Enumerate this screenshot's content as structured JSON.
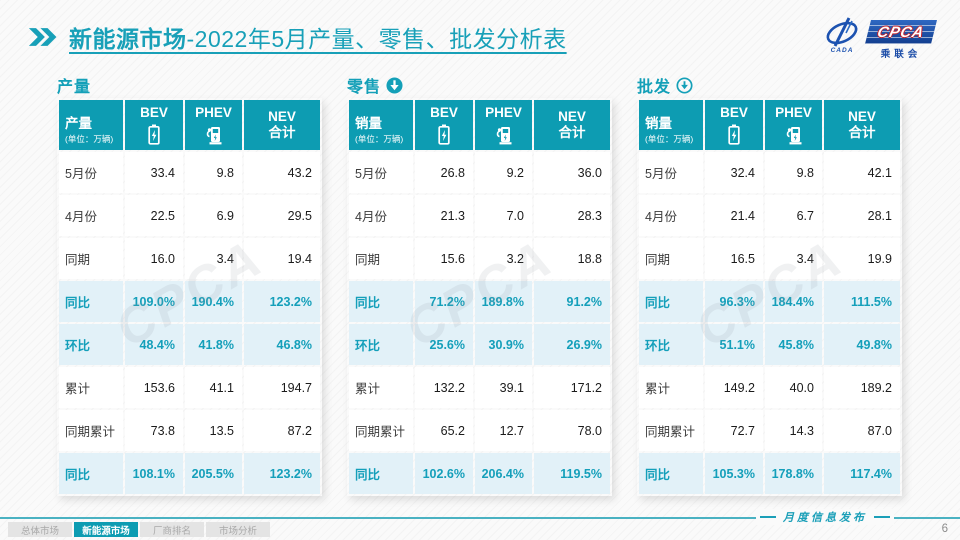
{
  "slide": {
    "title_bold": "新能源市场",
    "title_rest": "-2022年5月产量、零售、批发分析表",
    "footer_note": "月度信息发布",
    "page_number": "6",
    "nav_tabs": [
      "总体市场",
      "新能源市场",
      "厂商排名",
      "市场分析"
    ],
    "active_tab_index": 1
  },
  "logo": {
    "cpca": "CPCA",
    "cn": "乘联会",
    "emblem": "CADA"
  },
  "watermark": "CPCA",
  "colors": {
    "accent": "#0d9cb2",
    "title": "#18a0b8",
    "ratio_row_bg": "#e2f1f8",
    "ratio_text": "#149fba"
  },
  "tables": [
    {
      "section": "产量",
      "arrow": "none",
      "header": {
        "label": "产量",
        "unit": "(单位：万辆)",
        "col_bev": "BEV",
        "col_phev": "PHEV",
        "col_nev_line1": "NEV",
        "col_nev_line2": "合计"
      },
      "rows": [
        {
          "label": "5月份",
          "type": "normal",
          "values": [
            "33.4",
            "9.8",
            "43.2"
          ]
        },
        {
          "label": "4月份",
          "type": "normal",
          "values": [
            "22.5",
            "6.9",
            "29.5"
          ]
        },
        {
          "label": "同期",
          "type": "normal",
          "values": [
            "16.0",
            "3.4",
            "19.4"
          ]
        },
        {
          "label": "同比",
          "type": "ratio",
          "values": [
            "109.0%",
            "190.4%",
            "123.2%"
          ]
        },
        {
          "label": "环比",
          "type": "ratio",
          "values": [
            "48.4%",
            "41.8%",
            "46.8%"
          ]
        },
        {
          "label": "累计",
          "type": "normal",
          "values": [
            "153.6",
            "41.1",
            "194.7"
          ]
        },
        {
          "label": "同期累计",
          "type": "normal",
          "values": [
            "73.8",
            "13.5",
            "87.2"
          ]
        },
        {
          "label": "同比",
          "type": "ratio",
          "values": [
            "108.1%",
            "205.5%",
            "123.2%"
          ]
        }
      ]
    },
    {
      "section": "零售",
      "arrow": "filled",
      "header": {
        "label": "销量",
        "unit": "(单位：万辆)",
        "col_bev": "BEV",
        "col_phev": "PHEV",
        "col_nev_line1": "NEV",
        "col_nev_line2": "合计"
      },
      "rows": [
        {
          "label": "5月份",
          "type": "normal",
          "values": [
            "26.8",
            "9.2",
            "36.0"
          ]
        },
        {
          "label": "4月份",
          "type": "normal",
          "values": [
            "21.3",
            "7.0",
            "28.3"
          ]
        },
        {
          "label": "同期",
          "type": "normal",
          "values": [
            "15.6",
            "3.2",
            "18.8"
          ]
        },
        {
          "label": "同比",
          "type": "ratio",
          "values": [
            "71.2%",
            "189.8%",
            "91.2%"
          ]
        },
        {
          "label": "环比",
          "type": "ratio",
          "values": [
            "25.6%",
            "30.9%",
            "26.9%"
          ]
        },
        {
          "label": "累计",
          "type": "normal",
          "values": [
            "132.2",
            "39.1",
            "171.2"
          ]
        },
        {
          "label": "同期累计",
          "type": "normal",
          "values": [
            "65.2",
            "12.7",
            "78.0"
          ]
        },
        {
          "label": "同比",
          "type": "ratio",
          "values": [
            "102.6%",
            "206.4%",
            "119.5%"
          ]
        }
      ]
    },
    {
      "section": "批发",
      "arrow": "outline",
      "header": {
        "label": "销量",
        "unit": "(单位：万辆)",
        "col_bev": "BEV",
        "col_phev": "PHEV",
        "col_nev_line1": "NEV",
        "col_nev_line2": "合计"
      },
      "rows": [
        {
          "label": "5月份",
          "type": "normal",
          "values": [
            "32.4",
            "9.8",
            "42.1"
          ]
        },
        {
          "label": "4月份",
          "type": "normal",
          "values": [
            "21.4",
            "6.7",
            "28.1"
          ]
        },
        {
          "label": "同期",
          "type": "normal",
          "values": [
            "16.5",
            "3.4",
            "19.9"
          ]
        },
        {
          "label": "同比",
          "type": "ratio",
          "values": [
            "96.3%",
            "184.4%",
            "111.5%"
          ]
        },
        {
          "label": "环比",
          "type": "ratio",
          "values": [
            "51.1%",
            "45.8%",
            "49.8%"
          ]
        },
        {
          "label": "累计",
          "type": "normal",
          "values": [
            "149.2",
            "40.0",
            "189.2"
          ]
        },
        {
          "label": "同期累计",
          "type": "normal",
          "values": [
            "72.7",
            "14.3",
            "87.0"
          ]
        },
        {
          "label": "同比",
          "type": "ratio",
          "values": [
            "105.3%",
            "178.8%",
            "117.4%"
          ]
        }
      ]
    }
  ]
}
